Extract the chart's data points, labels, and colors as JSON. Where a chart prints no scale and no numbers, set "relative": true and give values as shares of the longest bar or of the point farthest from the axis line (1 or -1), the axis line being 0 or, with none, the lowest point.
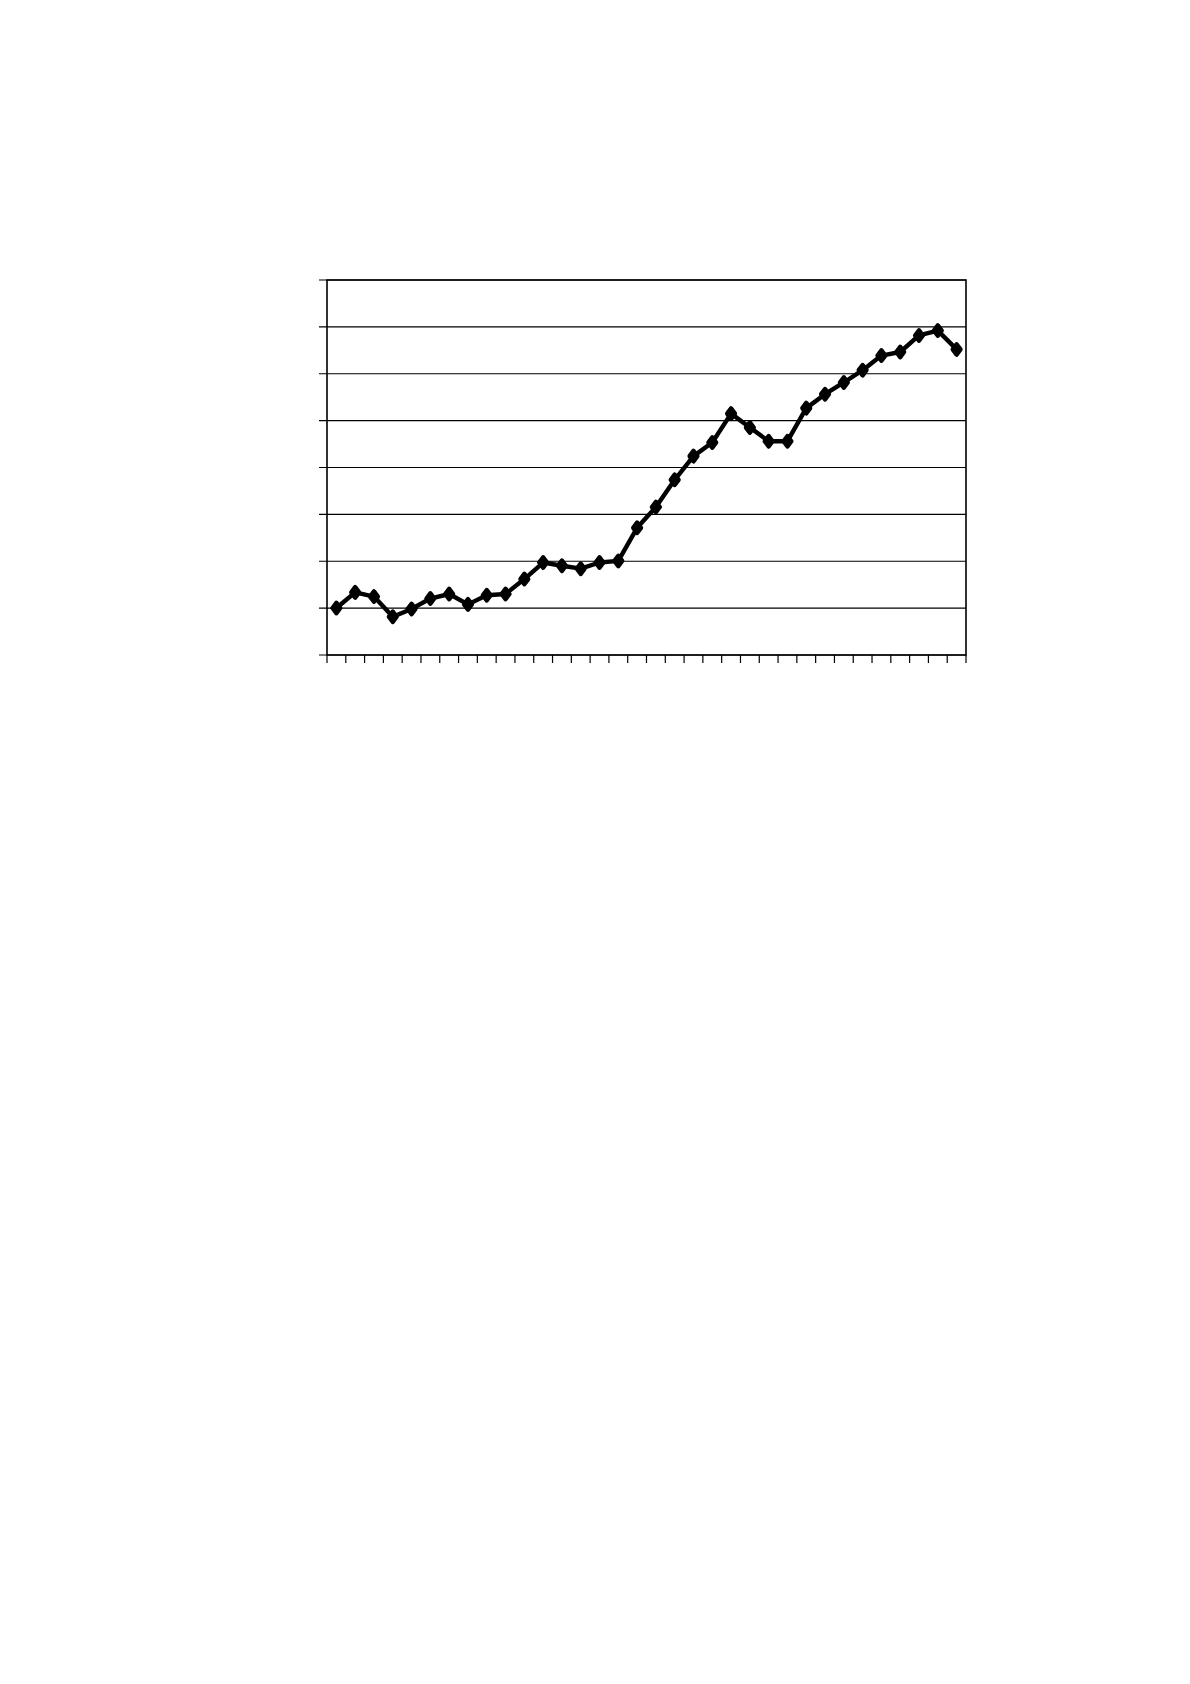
{
  "chart_data": {
    "type": "line",
    "relative": true,
    "grid": "y",
    "tick_labels": false,
    "marker": "diamond",
    "line_style": "solid",
    "categories": [
      null,
      null,
      null,
      null,
      null,
      null,
      null,
      null,
      null,
      null,
      null,
      null,
      null,
      null,
      null,
      null,
      null,
      null,
      null,
      null,
      null,
      null,
      null,
      null,
      null,
      null,
      null,
      null,
      null,
      null,
      null,
      null,
      null,
      null
    ],
    "series": [
      {
        "color": "#000000",
        "values": [
          0.145,
          0.193,
          0.18,
          0.118,
          0.142,
          0.174,
          0.188,
          0.156,
          0.184,
          0.188,
          0.234,
          0.285,
          0.275,
          0.266,
          0.285,
          0.29,
          0.392,
          0.456,
          0.54,
          0.613,
          0.655,
          0.744,
          0.701,
          0.659,
          0.659,
          0.761,
          0.804,
          0.84,
          0.878,
          0.923,
          0.934,
          0.985,
          1,
          0.942
        ]
      }
    ]
  }
}
